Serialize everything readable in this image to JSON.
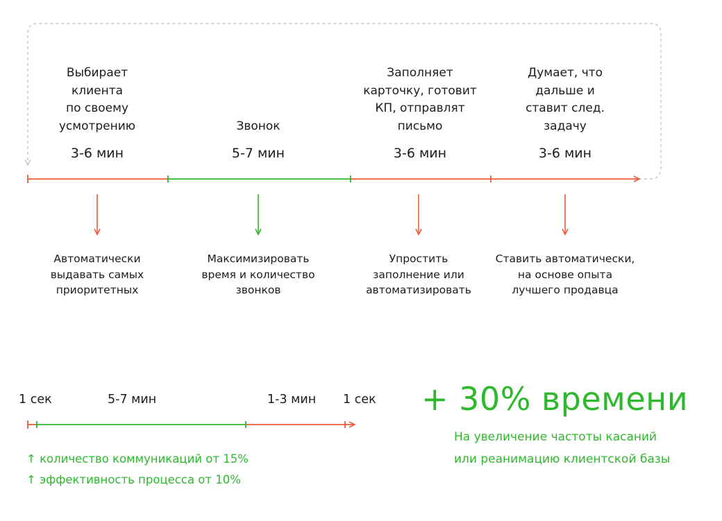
{
  "cycle": {
    "stages": [
      {
        "title": "Выбирает\nклиента\nпо своему\nусмотрению",
        "duration": "3-6 мин",
        "color": "#ef5a3c",
        "recommendation": "Автоматически\nвыдавать самых\nприоритетных"
      },
      {
        "title": "Звонок",
        "duration": "5-7 мин",
        "color": "#2eb82e",
        "recommendation": "Максимизировать\nвремя и количество\nзвонков"
      },
      {
        "title": "Заполняет\nкарточку, готовит\nКП, отправлят\nписьмо",
        "duration": "3-6 мин",
        "color": "#ef5a3c",
        "recommendation": "Упростить\nзаполнение или\nавтоматизировать"
      },
      {
        "title": "Думает, что\nдальше и\nставит след.\nзадачу",
        "duration": "3-6 мин",
        "color": "#ef5a3c",
        "recommendation": "Ставить автоматически,\nна основе опыта\nлучшего продавца"
      }
    ]
  },
  "new_cycle": {
    "segments": [
      {
        "label": "1 сек",
        "color": "#ef5a3c"
      },
      {
        "label": "5-7 мин",
        "color": "#2eb82e"
      },
      {
        "label": "1-3 мин",
        "color": "#ef5a3c"
      },
      {
        "label": "1 сек",
        "color": "#ef5a3c"
      }
    ],
    "benefits": [
      {
        "icon": "up-arrow-icon",
        "text": "количество коммуникаций от 15%"
      },
      {
        "icon": "up-arrow-icon",
        "text": "эффективность процесса от 10%"
      }
    ]
  },
  "result": {
    "headline": "+ 30% времени",
    "subtitle_line1": "На увеличение частоты касаний",
    "subtitle_line2": "или реанимацию клиентской базы"
  },
  "colors": {
    "red": "#ef5a3c",
    "green": "#2eb82e",
    "loop": "#c4c4c4",
    "text": "#1c1c1c"
  }
}
